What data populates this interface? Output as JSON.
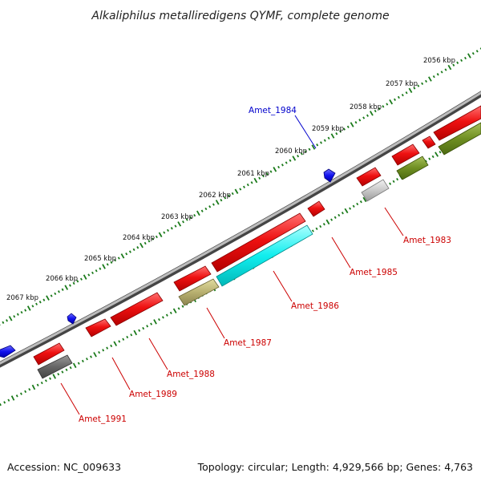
{
  "title": "Alkaliphilus metalliredigens QYMF, complete genome",
  "footer": {
    "accession": "Accession: NC_009633",
    "topology": "Topology: circular; Length: 4,929,566 bp; Genes: 4,763"
  },
  "colors": {
    "backbone": "#8c8c8c",
    "tick": "#1a7a1a",
    "label_forward": "#0000cc",
    "label_reverse": "#cc0000"
  },
  "kbp_labels": [
    "2056 kbp",
    "2057 kbp",
    "2058 kbp",
    "2059 kbp",
    "2060 kbp",
    "2061 kbp",
    "2062 kbp",
    "2063 kbp",
    "2064 kbp",
    "2065 kbp",
    "2066 kbp",
    "2067 kbp"
  ],
  "gene_labels": [
    {
      "id": "Amet_1984",
      "color": "#0000cc"
    },
    {
      "id": "Amet_1983",
      "color": "#cc0000"
    },
    {
      "id": "Amet_1985",
      "color": "#cc0000"
    },
    {
      "id": "Amet_1986",
      "color": "#cc0000"
    },
    {
      "id": "Amet_1987",
      "color": "#cc0000"
    },
    {
      "id": "Amet_1988",
      "color": "#cc0000"
    },
    {
      "id": "Amet_1989",
      "color": "#cc0000"
    },
    {
      "id": "Amet_1991",
      "color": "#cc0000"
    }
  ]
}
